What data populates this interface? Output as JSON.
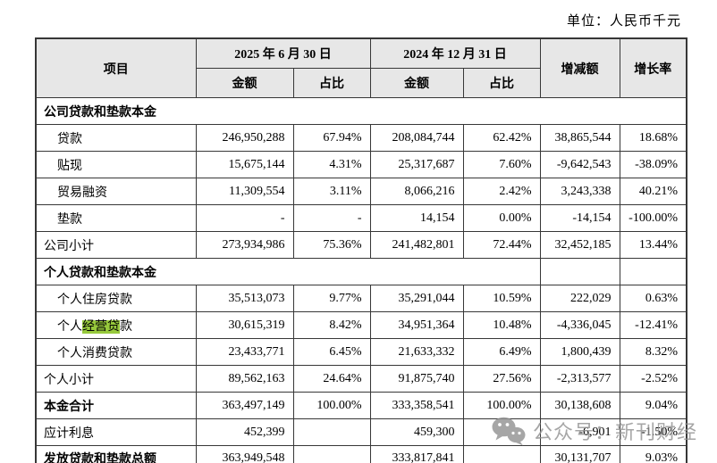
{
  "unit_label": "单位：人民币千元",
  "watermark": {
    "icon": "wechat-icon",
    "text": "公众号：新刊财经"
  },
  "colors": {
    "highlight": "#97c93c",
    "header_bg": "#e7e7e7",
    "border": "#373737",
    "watermark_gray": "#939393"
  },
  "table": {
    "header": {
      "item": "项目",
      "col_2025": "2025 年 6 月 30 日",
      "col_2024": "2024 年 12 月 31 日",
      "amount_2025": "金额",
      "ratio_2025": "占比",
      "amount_2024": "金额",
      "ratio_2024": "占比",
      "change": "增减额",
      "growth": "增长率"
    },
    "rows": [
      {
        "type": "section",
        "span": "full",
        "label": "公司贷款和垫款本金"
      },
      {
        "type": "data",
        "indent": true,
        "label": "贷款",
        "cells": [
          "246,950,288",
          "67.94%",
          "208,084,744",
          "62.42%",
          "38,865,544",
          "18.68%"
        ]
      },
      {
        "type": "data",
        "indent": true,
        "label": "贴现",
        "cells": [
          "15,675,144",
          "4.31%",
          "25,317,687",
          "7.60%",
          "-9,642,543",
          "-38.09%"
        ]
      },
      {
        "type": "data",
        "indent": true,
        "label": "贸易融资",
        "cells": [
          "11,309,554",
          "3.11%",
          "8,066,216",
          "2.42%",
          "3,243,338",
          "40.21%"
        ]
      },
      {
        "type": "data",
        "indent": true,
        "label": "垫款",
        "cells": [
          "-",
          "-",
          "14,154",
          "0.00%",
          "-14,154",
          "-100.00%"
        ]
      },
      {
        "type": "data",
        "indent": false,
        "label": "公司小计",
        "cells": [
          "273,934,986",
          "75.36%",
          "241,482,801",
          "72.44%",
          "32,452,185",
          "13.44%"
        ]
      },
      {
        "type": "section",
        "span": "partial",
        "label": "个人贷款和垫款本金"
      },
      {
        "type": "data",
        "indent": true,
        "label": "个人住房贷款",
        "cells": [
          "35,513,073",
          "9.77%",
          "35,291,044",
          "10.59%",
          "222,029",
          "0.63%"
        ]
      },
      {
        "type": "data",
        "indent": true,
        "label_parts": {
          "pre": "个人",
          "hl": "经营贷",
          "post": "款"
        },
        "cells": [
          "30,615,319",
          "8.42%",
          "34,951,364",
          "10.48%",
          "-4,336,045",
          "-12.41%"
        ]
      },
      {
        "type": "data",
        "indent": true,
        "label": "个人消费贷款",
        "cells": [
          "23,433,771",
          "6.45%",
          "21,633,332",
          "6.49%",
          "1,800,439",
          "8.32%"
        ]
      },
      {
        "type": "data",
        "indent": false,
        "label": "个人小计",
        "cells": [
          "89,562,163",
          "24.64%",
          "91,875,740",
          "27.56%",
          "-2,313,577",
          "-2.52%"
        ]
      },
      {
        "type": "data",
        "indent": false,
        "bold": true,
        "label": "本金合计",
        "cells": [
          "363,497,149",
          "100.00%",
          "333,358,541",
          "100.00%",
          "30,138,608",
          "9.04%"
        ]
      },
      {
        "type": "data",
        "indent": false,
        "label": "应计利息",
        "cells": [
          "452,399",
          "",
          "459,300",
          "",
          "-6,901",
          "-1.50%"
        ]
      },
      {
        "type": "data",
        "indent": false,
        "bold": true,
        "label": "发放贷款和垫款总额",
        "cells": [
          "363,949,548",
          "",
          "333,817,841",
          "",
          "30,131,707",
          "9.03%"
        ]
      }
    ]
  }
}
